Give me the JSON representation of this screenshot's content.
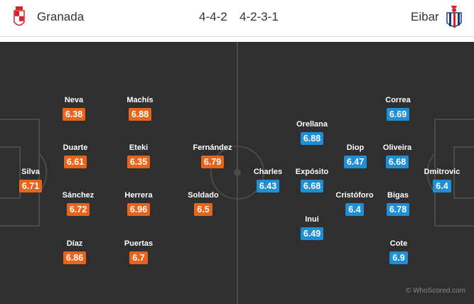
{
  "header": {
    "home_team": "Granada",
    "away_team": "Eibar",
    "home_formation": "4-4-2",
    "away_formation": "4-2-3-1",
    "home_crest_icon": "granada-crest-icon",
    "away_crest_icon": "eibar-crest-icon"
  },
  "colors": {
    "home_rating": "#e8641b",
    "away_rating": "#1d8fd6",
    "pitch": "#2f2f2f",
    "lines": "#4a4a4a"
  },
  "home_players": [
    {
      "name": "Silva",
      "rating": "6.71"
    },
    {
      "name": "Neva",
      "rating": "6.38"
    },
    {
      "name": "Duarte",
      "rating": "6.61"
    },
    {
      "name": "Sánchez",
      "rating": "6.72"
    },
    {
      "name": "Díaz",
      "rating": "6.86"
    },
    {
      "name": "Machís",
      "rating": "6.88"
    },
    {
      "name": "Eteki",
      "rating": "6.35"
    },
    {
      "name": "Herrera",
      "rating": "6.96"
    },
    {
      "name": "Puertas",
      "rating": "6.7"
    },
    {
      "name": "Fernández",
      "rating": "6.79"
    },
    {
      "name": "Soldado",
      "rating": "6.5"
    }
  ],
  "away_players": [
    {
      "name": "Dmitrovic",
      "rating": "6.4"
    },
    {
      "name": "Correa",
      "rating": "6.69"
    },
    {
      "name": "Oliveira",
      "rating": "6.68"
    },
    {
      "name": "Bigas",
      "rating": "6.78"
    },
    {
      "name": "Cote",
      "rating": "6.9"
    },
    {
      "name": "Diop",
      "rating": "6.47"
    },
    {
      "name": "Cristóforo",
      "rating": "6.4"
    },
    {
      "name": "Orellana",
      "rating": "6.88"
    },
    {
      "name": "Expósito",
      "rating": "6.68"
    },
    {
      "name": "Inui",
      "rating": "6.49"
    },
    {
      "name": "Charles",
      "rating": "6.43"
    }
  ],
  "watermark": "© WhoScored.com"
}
